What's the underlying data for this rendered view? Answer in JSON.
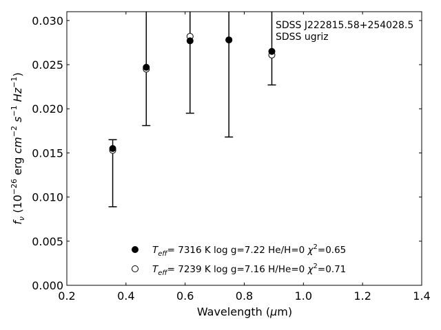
{
  "chart_data": {
    "type": "scatter",
    "xlabel": "Wavelength (μm)",
    "ylabel": "f_ν (10^-26 erg cm^-2 s^-1 Hz^-1)",
    "xlim": [
      0.2,
      1.4
    ],
    "ylim": [
      0.0,
      0.031
    ],
    "x_ticks": [
      "0.2",
      "0.4",
      "0.6",
      "0.8",
      "1.0",
      "1.2",
      "1.4"
    ],
    "y_ticks": [
      "0.000",
      "0.005",
      "0.010",
      "0.015",
      "0.020",
      "0.025",
      "0.030"
    ],
    "grid": false,
    "annotations": [
      "SDSS J222815.58+254028.5",
      "SDSS ugriz"
    ],
    "legend_placement": "lower-center",
    "observed": {
      "x": [
        0.3551,
        0.4686,
        0.6166,
        0.748,
        0.8932
      ],
      "y": [
        0.0155,
        0.0247,
        0.0277,
        0.0278,
        0.0265
      ],
      "err_low": [
        0.0089,
        0.0181,
        0.0195,
        0.0168,
        0.0227
      ],
      "err_high": [
        0.0165,
        0.0312,
        0.0312,
        0.0312,
        0.0312
      ]
    },
    "series": [
      {
        "name": "He/H=0",
        "legend": {
          "teff_val": "7316 K",
          "logg": "log g=7.22",
          "comp": "He/H=0",
          "chi": "=0.65"
        },
        "marker": "filled",
        "x": [
          0.3551,
          0.4686,
          0.6166,
          0.748,
          0.8932
        ],
        "y": [
          0.0155,
          0.0247,
          0.0277,
          0.0278,
          0.0265
        ]
      },
      {
        "name": "H/He=0",
        "legend": {
          "teff_val": "7239 K",
          "logg": "log g=7.16",
          "comp": "H/He=0",
          "chi": "=0.71"
        },
        "marker": "open",
        "x": [
          0.3551,
          0.4686,
          0.6166,
          0.748,
          0.8932
        ],
        "y": [
          0.0153,
          0.0245,
          0.0282,
          0.0278,
          0.0261
        ]
      }
    ]
  }
}
